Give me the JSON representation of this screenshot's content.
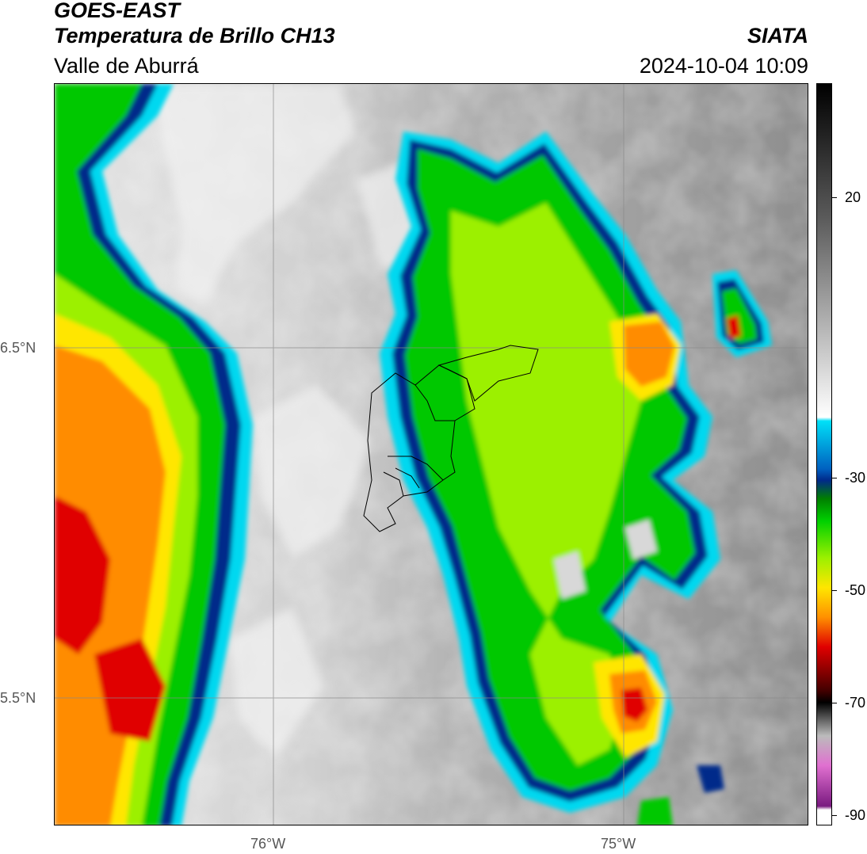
{
  "header": {
    "satellite": "GOES-EAST",
    "product": "Temperatura de Brillo CH13",
    "region": "Valle de Aburrá",
    "agency": "SIATA",
    "datetime": "2024-10-04 10:09"
  },
  "map": {
    "lon_labels": [
      "76°W",
      "75°W"
    ],
    "lat_labels": [
      "6.5°N",
      "5.5°N"
    ]
  },
  "colorbar": {
    "ticks": [
      "20",
      "-30",
      "-50",
      "-70",
      "-90"
    ],
    "colors": {
      "warm_grey": "#9a9a9a",
      "cyan": "#00d8f0",
      "navy": "#002a8a",
      "green": "#00c800",
      "lime": "#9cf000",
      "yellow": "#ffe600",
      "orange": "#ff8c00",
      "red": "#e00000",
      "magenta": "#d050c0"
    }
  }
}
